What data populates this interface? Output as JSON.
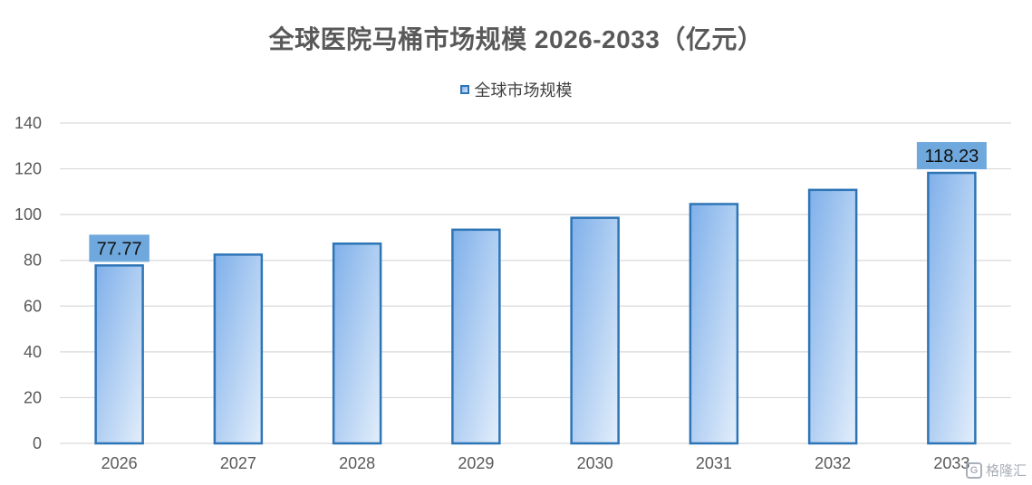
{
  "chart_data": {
    "type": "bar",
    "title": "全球医院马桶市场规模 2026-2033（亿元）",
    "categories": [
      "2026",
      "2027",
      "2028",
      "2029",
      "2030",
      "2031",
      "2032",
      "2033"
    ],
    "series": [
      {
        "name": "全球市场规模",
        "values": [
          77.77,
          82.5,
          87.3,
          93.4,
          98.6,
          104.6,
          110.8,
          118.23
        ]
      }
    ],
    "data_labels": [
      {
        "category": "2026",
        "text": "77.77"
      },
      {
        "category": "2033",
        "text": "118.23"
      }
    ],
    "xlabel": "",
    "ylabel": "",
    "ylim": [
      0,
      140
    ],
    "yticks": [
      0,
      20,
      40,
      60,
      80,
      100,
      120,
      140
    ],
    "grid": true,
    "legend_position": "top-center"
  },
  "colors": {
    "bar_fill_start": "#7fb0ea",
    "bar_fill_end": "#e3eefb",
    "bar_stroke": "#2e75b6",
    "label_bg": "#6fa8dc",
    "gridline": "#d9d9d9",
    "axis_text": "#595959"
  },
  "watermark": {
    "icon": "watermark-logo-icon",
    "text": "格隆汇"
  }
}
